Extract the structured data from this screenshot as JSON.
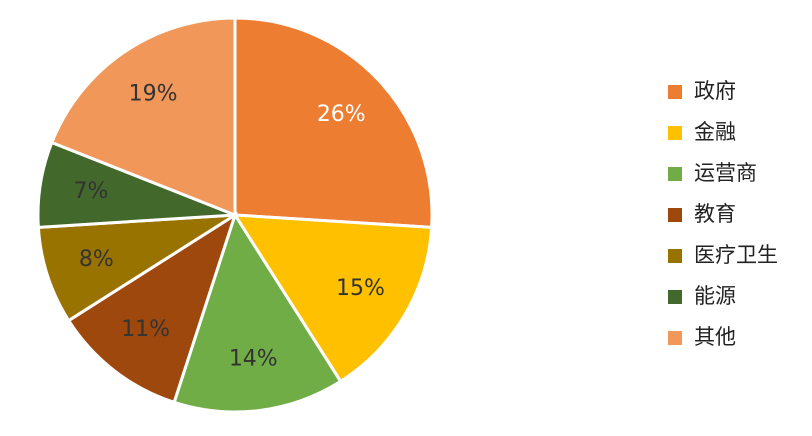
{
  "chart_data": {
    "type": "pie",
    "categories": [
      "政府",
      "金融",
      "运营商",
      "教育",
      "医疗卫生",
      "能源",
      "其他"
    ],
    "values": [
      26,
      15,
      14,
      11,
      8,
      7,
      19
    ],
    "value_labels": [
      "26%",
      "15%",
      "14%",
      "11%",
      "8%",
      "7%",
      "19%"
    ],
    "colors": [
      "#ED7D31",
      "#FFC000",
      "#70AD47",
      "#9E480E",
      "#997300",
      "#43682B",
      "#F1975A"
    ],
    "legend": "right"
  }
}
